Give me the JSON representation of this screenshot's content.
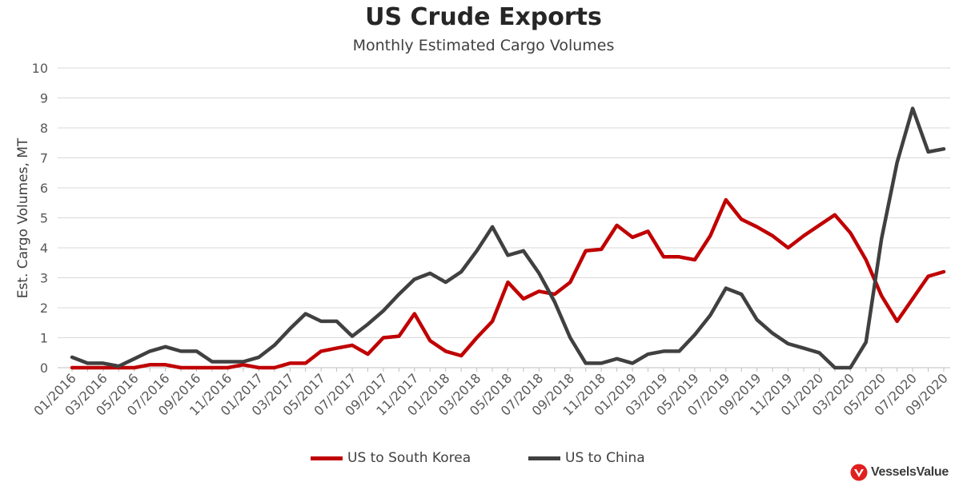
{
  "chart_data": {
    "type": "line",
    "title": "US Crude Exports",
    "subtitle": "Monthly Estimated Cargo Volumes",
    "xlabel": "",
    "ylabel": "Est. Cargo Volumes, MT",
    "ylim": [
      0,
      10
    ],
    "yticks": [
      "0",
      "1",
      "2",
      "3",
      "4",
      "5",
      "6",
      "7",
      "8",
      "9",
      "10"
    ],
    "grid": true,
    "legend_position": "bottom",
    "x": [
      "01/2016",
      "02/2016",
      "03/2016",
      "04/2016",
      "05/2016",
      "06/2016",
      "07/2016",
      "08/2016",
      "09/2016",
      "10/2016",
      "11/2016",
      "12/2016",
      "01/2017",
      "02/2017",
      "03/2017",
      "04/2017",
      "05/2017",
      "06/2017",
      "07/2017",
      "08/2017",
      "09/2017",
      "10/2017",
      "11/2017",
      "12/2017",
      "01/2018",
      "02/2018",
      "03/2018",
      "04/2018",
      "05/2018",
      "06/2018",
      "07/2018",
      "08/2018",
      "09/2018",
      "10/2018",
      "11/2018",
      "12/2018",
      "01/2019",
      "02/2019",
      "03/2019",
      "04/2019",
      "05/2019",
      "06/2019",
      "07/2019",
      "08/2019",
      "09/2019",
      "10/2019",
      "11/2019",
      "12/2019",
      "01/2020",
      "02/2020",
      "03/2020",
      "04/2020",
      "05/2020",
      "06/2020",
      "07/2020",
      "08/2020",
      "09/2020"
    ],
    "xtick_labels": [
      "01/2016",
      "03/2016",
      "05/2016",
      "07/2016",
      "09/2016",
      "11/2016",
      "01/2017",
      "03/2017",
      "05/2017",
      "07/2017",
      "09/2017",
      "11/2017",
      "01/2018",
      "03/2018",
      "05/2018",
      "07/2018",
      "09/2018",
      "11/2018",
      "01/2019",
      "03/2019",
      "05/2019",
      "07/2019",
      "09/2019",
      "11/2019",
      "01/2020",
      "03/2020",
      "05/2020",
      "07/2020",
      "09/2020"
    ],
    "series": [
      {
        "name": "US to South Korea",
        "color": "#c00000",
        "values": [
          0.0,
          0.0,
          0.0,
          0.0,
          0.0,
          0.1,
          0.1,
          0.0,
          0.0,
          0.0,
          0.0,
          0.1,
          0.0,
          0.0,
          0.15,
          0.15,
          0.55,
          0.65,
          0.75,
          0.45,
          1.0,
          1.05,
          1.8,
          0.9,
          0.55,
          0.4,
          1.0,
          1.55,
          2.85,
          2.3,
          2.55,
          2.45,
          2.85,
          3.9,
          3.95,
          4.75,
          4.35,
          4.55,
          3.7,
          3.7,
          3.6,
          4.4,
          5.6,
          4.95,
          4.7,
          4.4,
          4.0,
          4.4,
          4.75,
          5.1,
          4.5,
          3.6,
          2.4,
          1.55,
          2.3,
          3.05,
          3.2
        ]
      },
      {
        "name": "US to China",
        "color": "#404040",
        "values": [
          0.35,
          0.15,
          0.15,
          0.05,
          0.3,
          0.55,
          0.7,
          0.55,
          0.55,
          0.2,
          0.2,
          0.2,
          0.35,
          0.75,
          1.3,
          1.8,
          1.55,
          1.55,
          1.05,
          1.45,
          1.9,
          2.45,
          2.95,
          3.15,
          2.85,
          3.2,
          3.9,
          4.7,
          3.75,
          3.9,
          3.15,
          2.2,
          1.0,
          0.15,
          0.15,
          0.3,
          0.15,
          0.45,
          0.55,
          0.55,
          1.1,
          1.75,
          2.65,
          2.45,
          1.6,
          1.15,
          0.8,
          0.65,
          0.5,
          0.0,
          0.0,
          0.85,
          4.3,
          6.85,
          8.65,
          7.2,
          7.3
        ]
      }
    ]
  },
  "logo": {
    "text": "VesselsValue",
    "icon": "vesselsvalue-logo-icon"
  }
}
